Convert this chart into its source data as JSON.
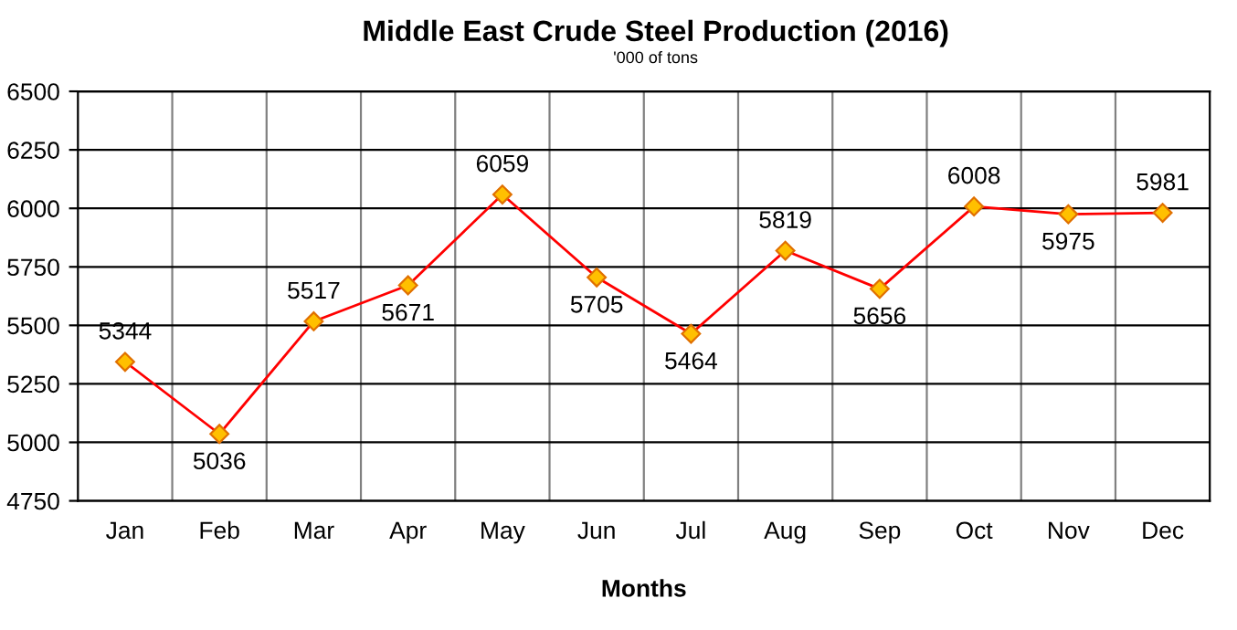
{
  "chart_data": {
    "type": "line",
    "title": "Middle East Crude Steel Production (2016)",
    "subtitle": "'000 of tons",
    "xlabel": "Months",
    "categories": [
      "Jan",
      "Feb",
      "Mar",
      "Apr",
      "May",
      "Jun",
      "Jul",
      "Aug",
      "Sep",
      "Oct",
      "Nov",
      "Dec"
    ],
    "series": [
      {
        "color": "#ff0000",
        "values": [
          5344,
          5036,
          5517,
          5671,
          6059,
          5705,
          5464,
          5819,
          5656,
          6008,
          5975,
          5981
        ]
      }
    ],
    "ylim": [
      4750,
      6500
    ],
    "yticks": [
      4750,
      5000,
      5250,
      5500,
      5750,
      6000,
      6250,
      6500
    ],
    "grid": true,
    "marker": "diamond",
    "line_style": "solid",
    "data_labels": true
  }
}
